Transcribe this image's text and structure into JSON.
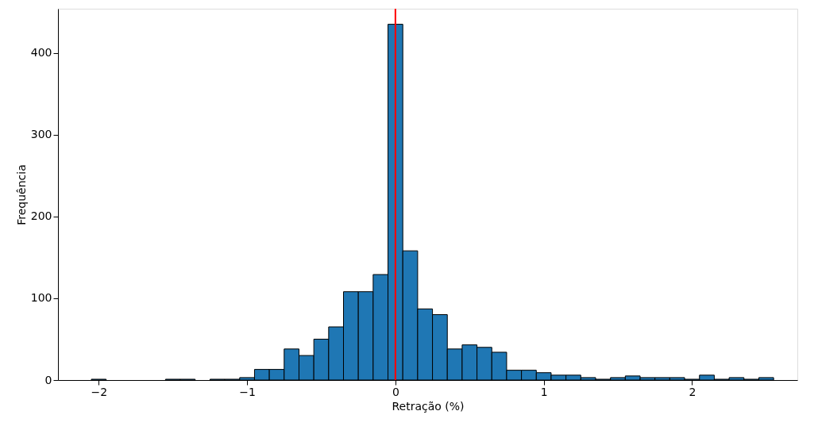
{
  "chart_data": {
    "type": "histogram",
    "xlabel": "Retração (%)",
    "ylabel": "Frequência",
    "bins": [
      -2.05,
      -1.95,
      -1.85,
      -1.75,
      -1.65,
      -1.55,
      -1.45,
      -1.35,
      -1.25,
      -1.15,
      -1.05,
      -0.95,
      -0.85,
      -0.75,
      -0.65,
      -0.55,
      -0.45,
      -0.35,
      -0.25,
      -0.15,
      -0.05,
      0.05,
      0.15,
      0.25,
      0.35,
      0.45,
      0.55,
      0.65,
      0.75,
      0.85,
      0.95,
      1.05,
      1.15,
      1.25,
      1.35,
      1.45,
      1.55,
      1.65,
      1.75,
      1.85,
      1.95,
      2.05,
      2.15,
      2.25,
      2.35,
      2.45,
      2.55
    ],
    "values": [
      1,
      0,
      0,
      0,
      0,
      1,
      1,
      0,
      1,
      1,
      3,
      13,
      13,
      38,
      30,
      50,
      65,
      108,
      108,
      129,
      435,
      158,
      87,
      80,
      38,
      43,
      40,
      34,
      12,
      12,
      9,
      6,
      6,
      3,
      1,
      3,
      5,
      3,
      3,
      3,
      1,
      6,
      1,
      3,
      1,
      3
    ],
    "color": "#1f77b4",
    "xlim": [
      -2.275,
      2.71
    ],
    "ylim": [
      0,
      454
    ],
    "xticks": [
      {
        "value": -2,
        "label": "−2"
      },
      {
        "value": -1,
        "label": "−1"
      },
      0,
      1,
      2
    ],
    "yticks": [
      0,
      100,
      200,
      300,
      400
    ],
    "ref_lines": [
      {
        "axis": "x",
        "value": 0,
        "color": "#ff0000"
      }
    ],
    "grid": false
  }
}
